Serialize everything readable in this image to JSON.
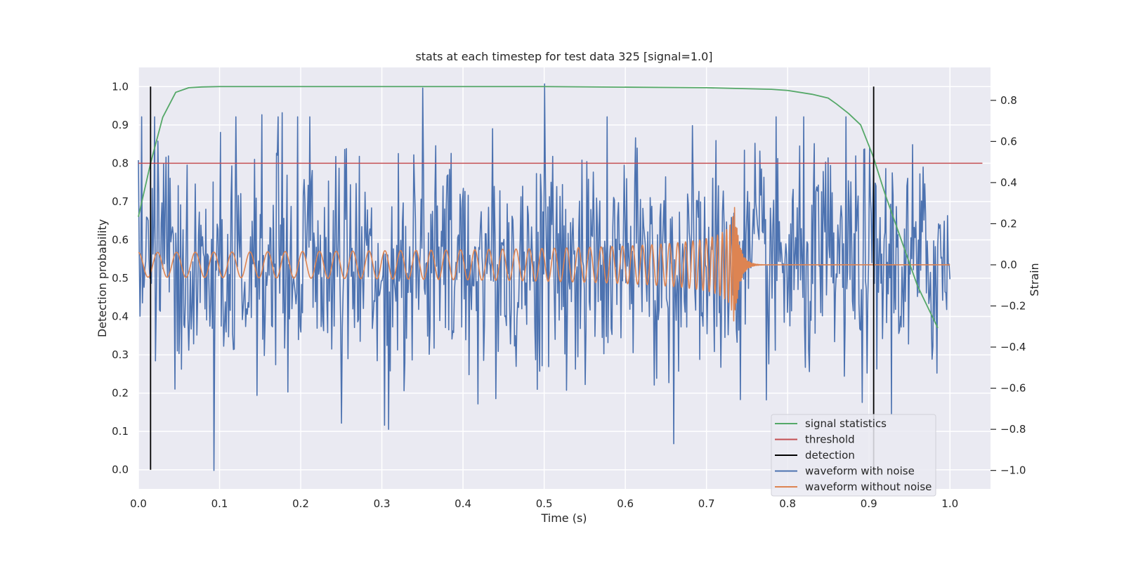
{
  "chart_data": {
    "type": "line",
    "title": "stats at each timestep for test data 325 [signal=1.0]",
    "xlabel": "Time (s)",
    "ylabel_left": "Detection probability",
    "ylabel_right": "Strain",
    "xlim": [
      0.0,
      1.05
    ],
    "ylim_left": [
      -0.05,
      1.05
    ],
    "ylim_right": [
      -1.09,
      0.96
    ],
    "xticks": [
      "0.0",
      "0.1",
      "0.2",
      "0.3",
      "0.4",
      "0.5",
      "0.6",
      "0.7",
      "0.8",
      "0.9",
      "1.0"
    ],
    "yticks_left": [
      "0.0",
      "0.1",
      "0.2",
      "0.3",
      "0.4",
      "0.5",
      "0.6",
      "0.7",
      "0.8",
      "0.9",
      "1.0"
    ],
    "yticks_right": [
      "−1.0",
      "−0.8",
      "−0.6",
      "−0.4",
      "−0.2",
      "0.0",
      "0.2",
      "0.4",
      "0.6",
      "0.8"
    ],
    "grid": true,
    "legend_position": "lower-right",
    "legend": [
      {
        "label": "signal statistics",
        "color": "#55a868"
      },
      {
        "label": "threshold",
        "color": "#c44e52"
      },
      {
        "label": "detection",
        "color": "#000000"
      },
      {
        "label": "waveform with noise",
        "color": "#4c72b0"
      },
      {
        "label": "waveform without noise",
        "color": "#dd8452"
      }
    ],
    "series": [
      {
        "name": "signal statistics",
        "axis": "left",
        "color": "#55a868",
        "x": [
          0.0,
          0.015,
          0.03,
          0.046,
          0.062,
          0.078,
          0.1,
          0.3,
          0.5,
          0.7,
          0.78,
          0.8,
          0.83,
          0.85,
          0.86,
          0.875,
          0.89,
          0.905,
          0.92,
          0.94,
          0.96,
          0.985
        ],
        "y": [
          0.66,
          0.8,
          0.92,
          0.985,
          0.997,
          0.999,
          1.0,
          1.0,
          1.0,
          0.997,
          0.993,
          0.99,
          0.98,
          0.97,
          0.955,
          0.93,
          0.9,
          0.82,
          0.72,
          0.6,
          0.48,
          0.37
        ]
      },
      {
        "name": "threshold",
        "axis": "left",
        "color": "#c44e52",
        "x": [
          0.0,
          1.04
        ],
        "y": [
          0.8,
          0.8
        ]
      },
      {
        "name": "detection",
        "axis": "left",
        "color": "#000000",
        "type": "vlines",
        "x": [
          0.015,
          0.906
        ],
        "ymin": 0.0,
        "ymax": 1.0
      },
      {
        "name": "waveform with noise",
        "axis": "right",
        "color": "#4c72b0",
        "x_range": [
          0.0,
          1.0
        ],
        "std": 0.28,
        "extremes": [
          {
            "x": 0.093,
            "y": -1.0
          },
          {
            "x": 0.5,
            "y": 0.88
          },
          {
            "x": 0.35,
            "y": 0.86
          },
          {
            "x": 0.66,
            "y": -0.87
          },
          {
            "x": 0.308,
            "y": -0.8
          },
          {
            "x": 0.25,
            "y": -0.77
          },
          {
            "x": 0.177,
            "y": 0.74
          },
          {
            "x": 0.152,
            "y": 0.73
          }
        ]
      },
      {
        "name": "waveform without noise",
        "axis": "right",
        "color": "#dd8452",
        "x_range": [
          0.0,
          1.0
        ],
        "merger_time": 0.735,
        "peak_amplitude": 0.28,
        "early_amplitude": 0.06
      }
    ]
  }
}
